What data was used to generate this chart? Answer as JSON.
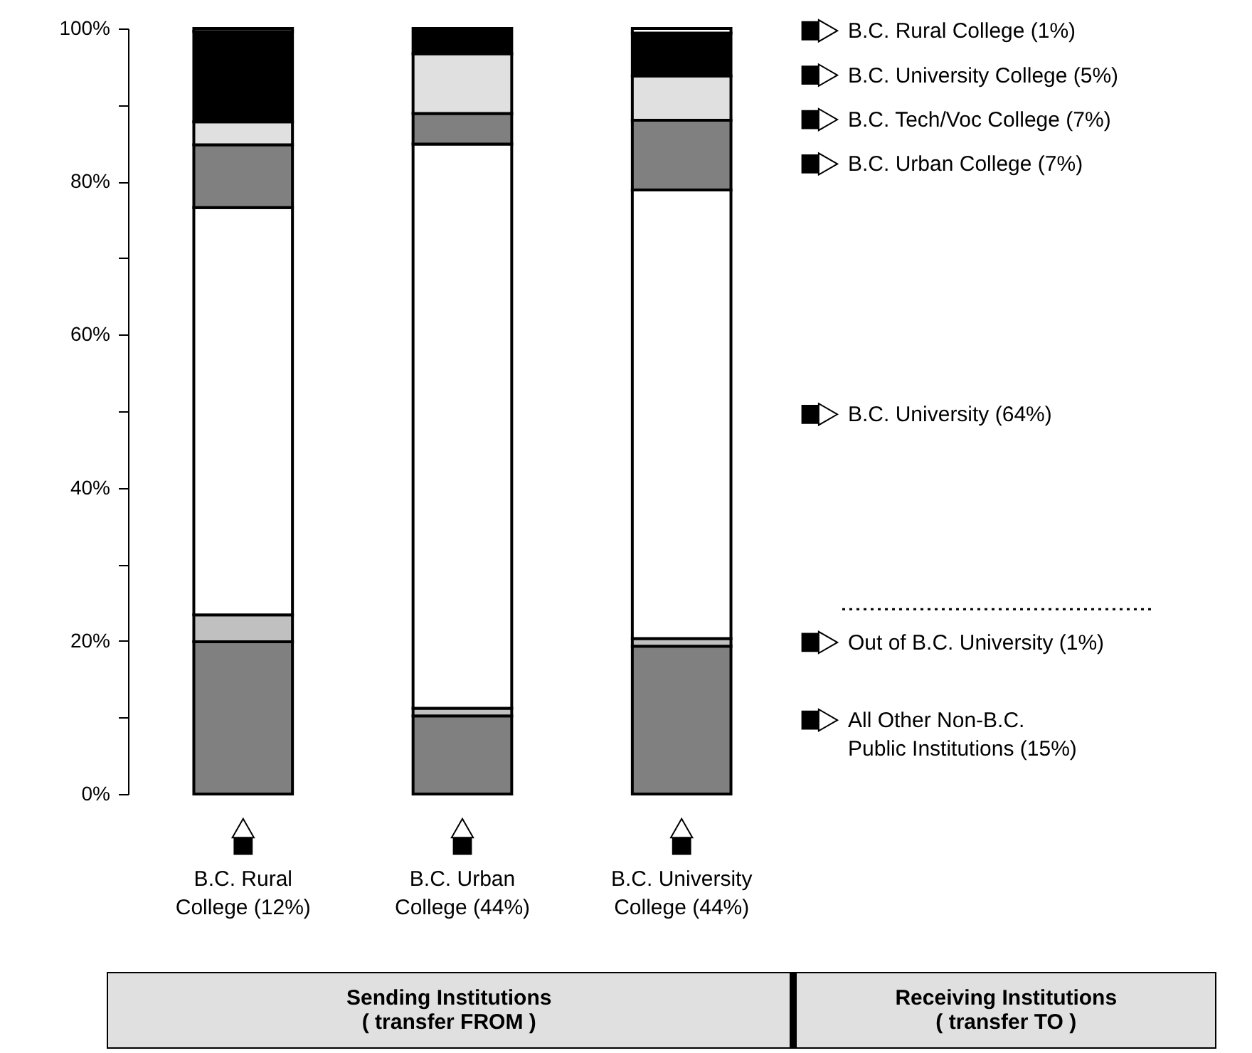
{
  "chart_data": {
    "type": "bar",
    "stacked": true,
    "categories": [
      "B.C. Rural College (12%)",
      "B.C. Urban College (44%)",
      "B.C. University College (44%)"
    ],
    "series": [
      {
        "name": "All Other Non-B.C. Public Institutions (15%)",
        "color": "#808080",
        "values": [
          19.9,
          10.2,
          19.3
        ]
      },
      {
        "name": "Out of B.C. University (1%)",
        "color": "#c0c0c0",
        "values": [
          3.5,
          1.0,
          1.0
        ]
      },
      {
        "name": "B.C. University (64%)",
        "color": "#ffffff",
        "values": [
          53.2,
          73.7,
          58.6
        ]
      },
      {
        "name": "B.C. Urban College (7%)",
        "color": "#808080",
        "values": [
          8.2,
          4.0,
          9.1
        ]
      },
      {
        "name": "B.C. Tech/Voc College (7%)",
        "color": "#e0e0e0",
        "values": [
          3.0,
          7.8,
          5.8
        ]
      },
      {
        "name": "B.C. University College (5%)",
        "color": "#000000",
        "values": [
          11.8,
          3.3,
          5.6
        ]
      },
      {
        "name": "B.C. Rural College (1%)",
        "color": "#ffffff",
        "values": [
          0.4,
          null,
          0.6
        ]
      }
    ],
    "ylim": [
      0,
      100
    ],
    "yticks": [
      {
        "value": 0,
        "label": "0%"
      },
      {
        "value": 10,
        "label": null
      },
      {
        "value": 20,
        "label": "20%"
      },
      {
        "value": 30,
        "label": null
      },
      {
        "value": 40,
        "label": "40%"
      },
      {
        "value": 50,
        "label": null
      },
      {
        "value": 60,
        "label": "60%"
      },
      {
        "value": 70,
        "label": null
      },
      {
        "value": 80,
        "label": "80%"
      },
      {
        "value": 90,
        "label": null
      },
      {
        "value": 100,
        "label": "100%"
      }
    ],
    "grid": false,
    "legend": "right",
    "annotations": [
      "Sending Institutions",
      "( transfer FROM )",
      "Receiving Institutions",
      "( transfer TO )"
    ]
  }
}
